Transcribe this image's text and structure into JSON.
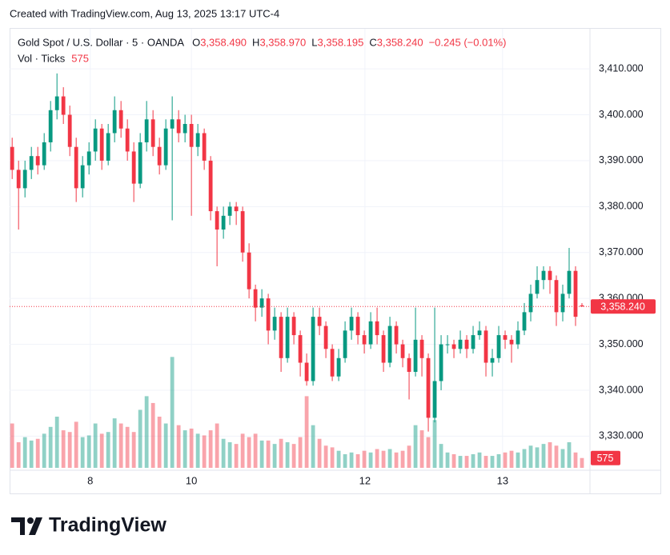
{
  "header": {
    "created": "Created with TradingView.com, Aug 13, 2025 13:17 UTC-4"
  },
  "chart_data": {
    "type": "candlestick",
    "symbol": "Gold Spot / U.S. Dollar · 5 · OANDA",
    "ohlc_labels": [
      {
        "key": "O",
        "value": "3,358.490"
      },
      {
        "key": "H",
        "value": "3,358.970"
      },
      {
        "key": "L",
        "value": "3,358.195"
      },
      {
        "key": "C",
        "value": "3,358.240"
      }
    ],
    "change": "−0.245 (−0.01%)",
    "volume_title": "Vol · Ticks",
    "last_price_label": "3,358.240",
    "candles": [
      [
        3393,
        3395,
        3386,
        3388
      ],
      [
        3388,
        3390,
        3375,
        3384
      ],
      [
        3384,
        3390,
        3382,
        3388
      ],
      [
        3388,
        3393,
        3386,
        3391
      ],
      [
        3391,
        3393,
        3387,
        3389
      ],
      [
        3389,
        3396,
        3388,
        3394
      ],
      [
        3394,
        3403,
        3392,
        3401
      ],
      [
        3401,
        3409,
        3399,
        3404
      ],
      [
        3404,
        3406,
        3398,
        3400
      ],
      [
        3400,
        3402,
        3391,
        3393
      ],
      [
        3393,
        3395,
        3381,
        3384
      ],
      [
        3384,
        3391,
        3382,
        3389
      ],
      [
        3389,
        3394,
        3387,
        3392
      ],
      [
        3392,
        3399,
        3390,
        3397
      ],
      [
        3397,
        3398,
        3388,
        3390
      ],
      [
        3390,
        3398,
        3389,
        3396
      ],
      [
        3396,
        3404,
        3394,
        3401
      ],
      [
        3401,
        3403,
        3395,
        3397
      ],
      [
        3397,
        3399,
        3390,
        3392
      ],
      [
        3392,
        3394,
        3381,
        3385
      ],
      [
        3385,
        3396,
        3384,
        3394
      ],
      [
        3394,
        3403,
        3392,
        3399
      ],
      [
        3399,
        3401,
        3391,
        3393
      ],
      [
        3393,
        3395,
        3387,
        3389
      ],
      [
        3389,
        3399,
        3388,
        3397
      ],
      [
        3397,
        3404,
        3377,
        3399
      ],
      [
        3399,
        3401,
        3394,
        3396
      ],
      [
        3396,
        3400,
        3394,
        3398
      ],
      [
        3398,
        3400,
        3378,
        3393
      ],
      [
        3393,
        3398,
        3391,
        3396
      ],
      [
        3396,
        3397,
        3388,
        3390
      ],
      [
        3390,
        3391,
        3377,
        3379
      ],
      [
        3379,
        3380,
        3367,
        3375
      ],
      [
        3375,
        3380,
        3373,
        3378
      ],
      [
        3378,
        3381,
        3376,
        3380
      ],
      [
        3380,
        3381,
        3376,
        3379
      ],
      [
        3379,
        3380,
        3368,
        3370
      ],
      [
        3370,
        3372,
        3360,
        3362
      ],
      [
        3362,
        3363,
        3355,
        3358
      ],
      [
        3358,
        3362,
        3356,
        3360
      ],
      [
        3360,
        3361,
        3350,
        3353
      ],
      [
        3353,
        3358,
        3351,
        3356
      ],
      [
        3356,
        3357,
        3344,
        3347
      ],
      [
        3347,
        3358,
        3346,
        3356
      ],
      [
        3356,
        3357,
        3350,
        3352
      ],
      [
        3352,
        3353,
        3343,
        3346
      ],
      [
        3346,
        3348,
        3341,
        3342
      ],
      [
        3342,
        3358,
        3341,
        3356
      ],
      [
        3356,
        3358,
        3352,
        3354
      ],
      [
        3354,
        3355,
        3347,
        3349
      ],
      [
        3349,
        3350,
        3342,
        3343
      ],
      [
        3343,
        3349,
        3342,
        3347
      ],
      [
        3347,
        3355,
        3346,
        3353
      ],
      [
        3353,
        3358,
        3351,
        3356
      ],
      [
        3356,
        3357,
        3350,
        3352
      ],
      [
        3352,
        3353,
        3348,
        3350
      ],
      [
        3350,
        3357,
        3349,
        3355
      ],
      [
        3355,
        3358,
        3350,
        3352
      ],
      [
        3352,
        3353,
        3344,
        3346
      ],
      [
        3346,
        3356,
        3345,
        3354
      ],
      [
        3354,
        3355,
        3348,
        3350
      ],
      [
        3350,
        3351,
        3345,
        3347
      ],
      [
        3347,
        3348,
        3338,
        3344
      ],
      [
        3344,
        3358,
        3343,
        3351
      ],
      [
        3351,
        3352,
        3343,
        3347
      ],
      [
        3347,
        3348,
        3331,
        3334
      ],
      [
        3334,
        3358,
        3333,
        3342
      ],
      [
        3342,
        3352,
        3340,
        3350
      ],
      [
        3350,
        3352,
        3348,
        3350
      ],
      [
        3350,
        3351,
        3347,
        3349
      ],
      [
        3349,
        3353,
        3348,
        3351
      ],
      [
        3351,
        3352,
        3347,
        3349
      ],
      [
        3349,
        3354,
        3348,
        3352
      ],
      [
        3352,
        3355,
        3351,
        3353
      ],
      [
        3353,
        3354,
        3343,
        3346
      ],
      [
        3346,
        3349,
        3343,
        3347
      ],
      [
        3347,
        3354,
        3346,
        3352
      ],
      [
        3352,
        3353,
        3349,
        3351
      ],
      [
        3351,
        3352,
        3346,
        3350
      ],
      [
        3350,
        3355,
        3349,
        3353
      ],
      [
        3353,
        3359,
        3352,
        3357
      ],
      [
        3357,
        3363,
        3355,
        3361
      ],
      [
        3361,
        3367,
        3360,
        3364
      ],
      [
        3364,
        3367,
        3362,
        3366
      ],
      [
        3366,
        3367,
        3361,
        3364
      ],
      [
        3364,
        3365,
        3354,
        3357
      ],
      [
        3357,
        3363,
        3355,
        3361
      ],
      [
        3361,
        3371,
        3360,
        3366
      ],
      [
        3366,
        3367,
        3354,
        3356
      ],
      [
        3358.49,
        3358.97,
        3358.195,
        3358.24
      ]
    ],
    "volume": [
      2600,
      1500,
      1800,
      1600,
      1700,
      2000,
      2400,
      3000,
      2200,
      2100,
      2700,
      1800,
      1900,
      2600,
      2000,
      2100,
      2900,
      2600,
      2400,
      2100,
      3400,
      4200,
      3800,
      3000,
      2600,
      6500,
      2500,
      2200,
      2300,
      2000,
      1900,
      2200,
      2600,
      1700,
      1500,
      1400,
      2000,
      1800,
      2000,
      1600,
      1600,
      1400,
      1700,
      1500,
      1400,
      1800,
      4200,
      2500,
      1700,
      1300,
      1200,
      1000,
      800,
      900,
      800,
      1000,
      900,
      1100,
      1000,
      1100,
      900,
      1000,
      1300,
      2500,
      2200,
      1800,
      2800,
      1400,
      900,
      800,
      700,
      700,
      800,
      900,
      700,
      700,
      800,
      900,
      1000,
      900,
      1100,
      1300,
      1200,
      1400,
      1500,
      1300,
      1100,
      1500,
      900,
      575
    ],
    "vlim": [
      0,
      7500
    ],
    "ylim": [
      3323.1,
      3418.9
    ],
    "yticks": [
      {
        "value": 3330,
        "label": "3,330.000"
      },
      {
        "value": 3340,
        "label": "3,340.000"
      },
      {
        "value": 3350,
        "label": "3,350.000"
      },
      {
        "value": 3360,
        "label": "3,360.000"
      },
      {
        "value": 3370,
        "label": "3,370.000"
      },
      {
        "value": 3380,
        "label": "3,380.000"
      },
      {
        "value": 3390,
        "label": "3,390.000"
      },
      {
        "value": 3400,
        "label": "3,400.000"
      },
      {
        "value": 3410,
        "label": "3,410.000"
      }
    ],
    "xlim": [
      -0.4,
      90.25
    ],
    "xticks": [
      {
        "value": 12.2,
        "label": "8"
      },
      {
        "value": 28,
        "label": "10"
      },
      {
        "value": 55.1,
        "label": "12"
      },
      {
        "value": 76.6,
        "label": "13"
      }
    ],
    "up_color": "#089981",
    "down_color": "#f23645",
    "grid": true
  },
  "footer": {
    "logo": "TradingView"
  }
}
